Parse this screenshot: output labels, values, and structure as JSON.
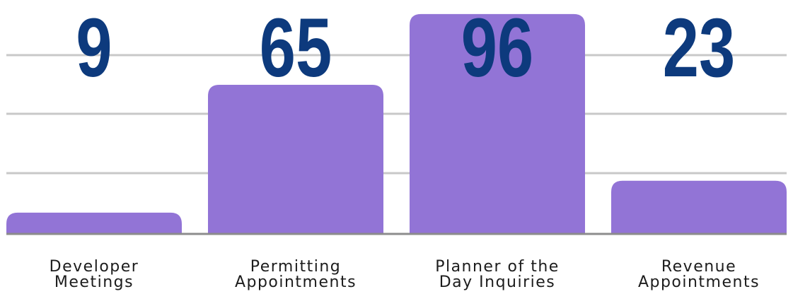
{
  "chart_data": {
    "type": "bar",
    "categories": [
      [
        "Developer",
        "Meetings"
      ],
      [
        "Permitting",
        "Appointments"
      ],
      [
        "Planner of the",
        "Day Inquiries"
      ],
      [
        "Revenue",
        "Appointments"
      ]
    ],
    "values": [
      9,
      65,
      96,
      23
    ],
    "ylim": [
      0,
      100
    ],
    "grid": true,
    "legend": "none",
    "colors": {
      "bar": "#9274d6",
      "value_label": "#0d3a7d",
      "category_label": "#1c1c1c",
      "grid": "#c8c8c8",
      "baseline": "#8c8c8c"
    }
  }
}
